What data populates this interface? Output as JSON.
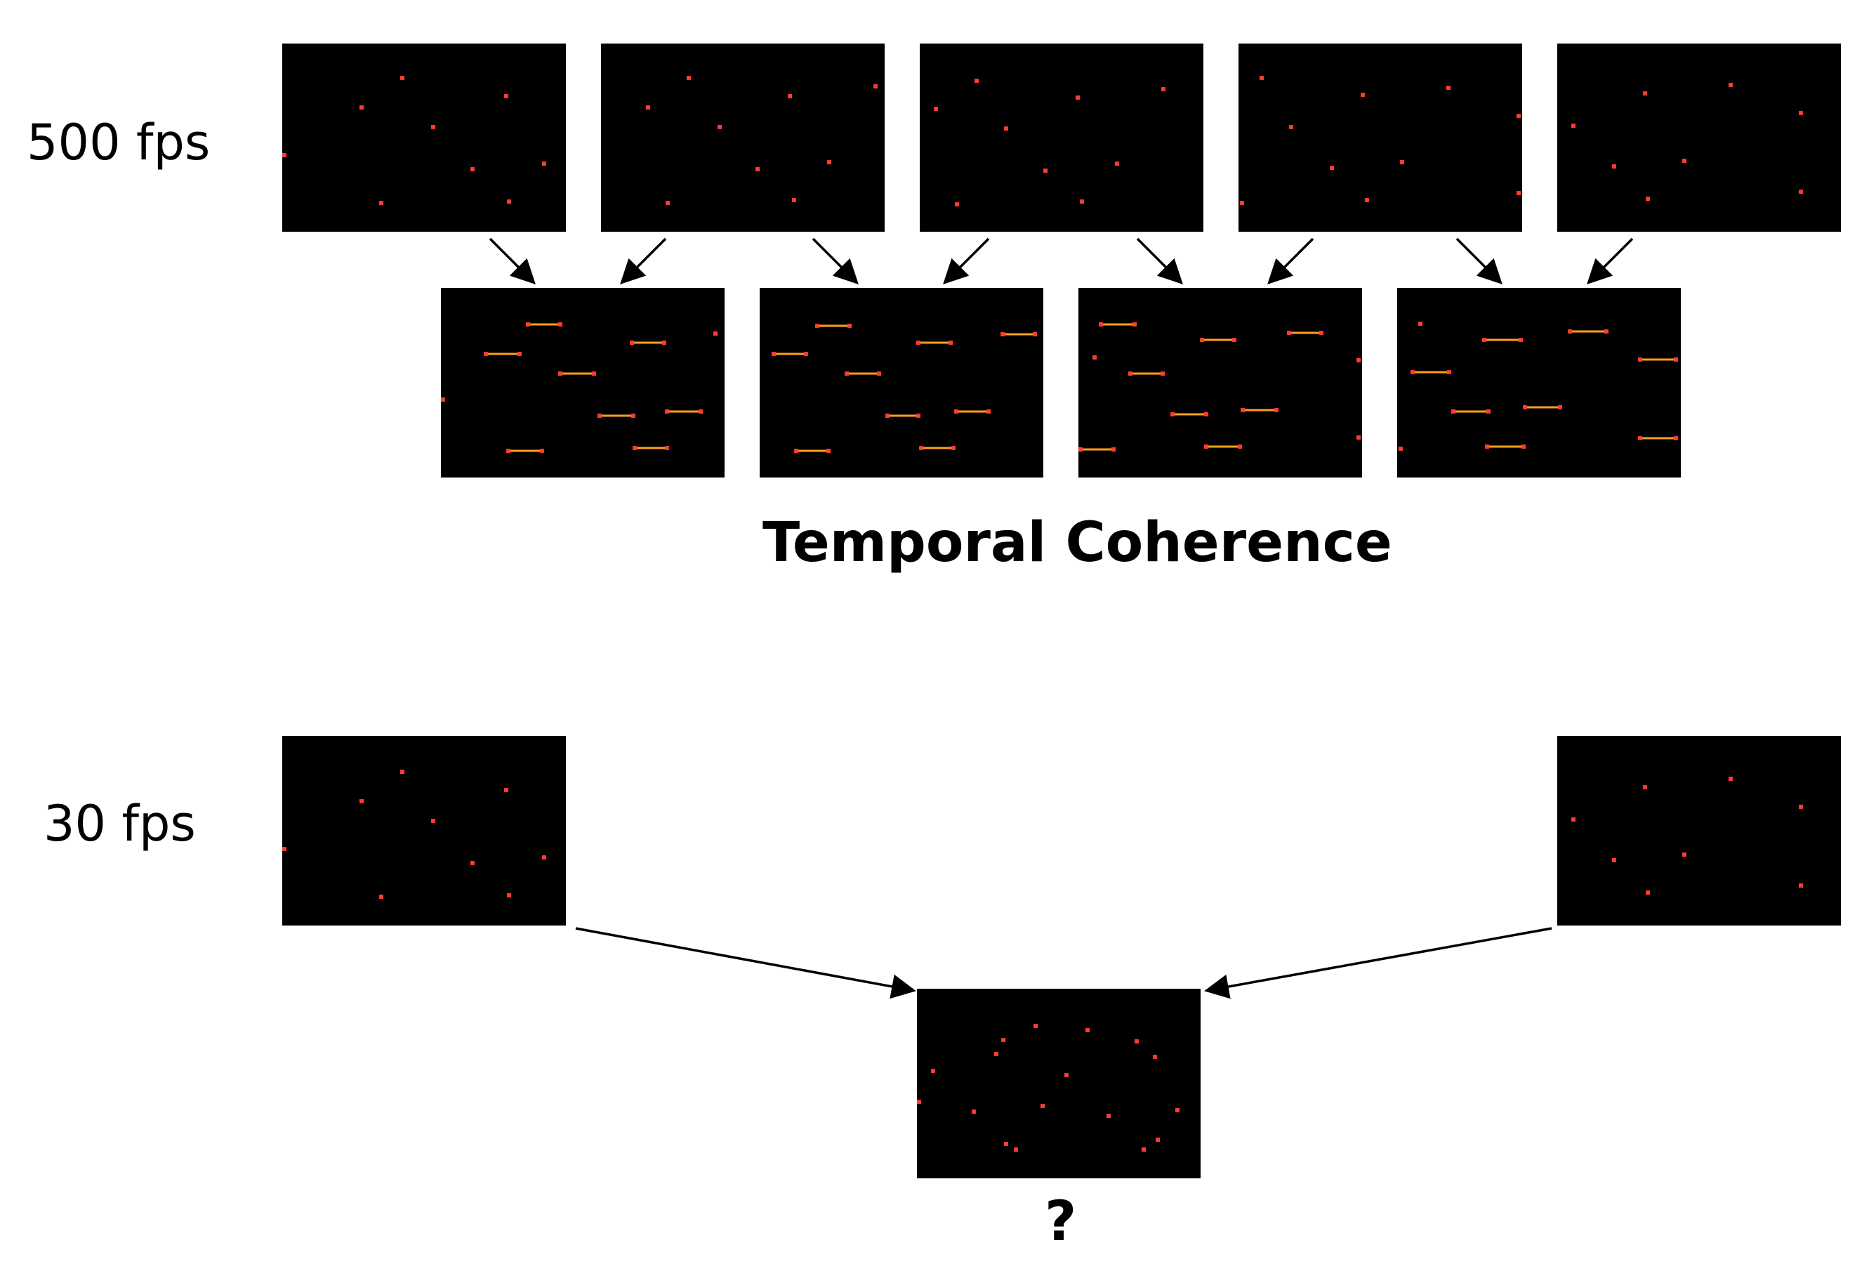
{
  "labels": {
    "fps_high": "500 fps",
    "fps_low": "30 fps",
    "coherence_title": "Temporal Coherence",
    "question": "?"
  },
  "colors": {
    "background": "#ffffff",
    "frame": "#000000",
    "event_dot": "#ff3b30",
    "flow_line": "#ff9f1c",
    "arrow": "#000000"
  },
  "icons": {
    "arrow": "arrow-icon"
  }
}
